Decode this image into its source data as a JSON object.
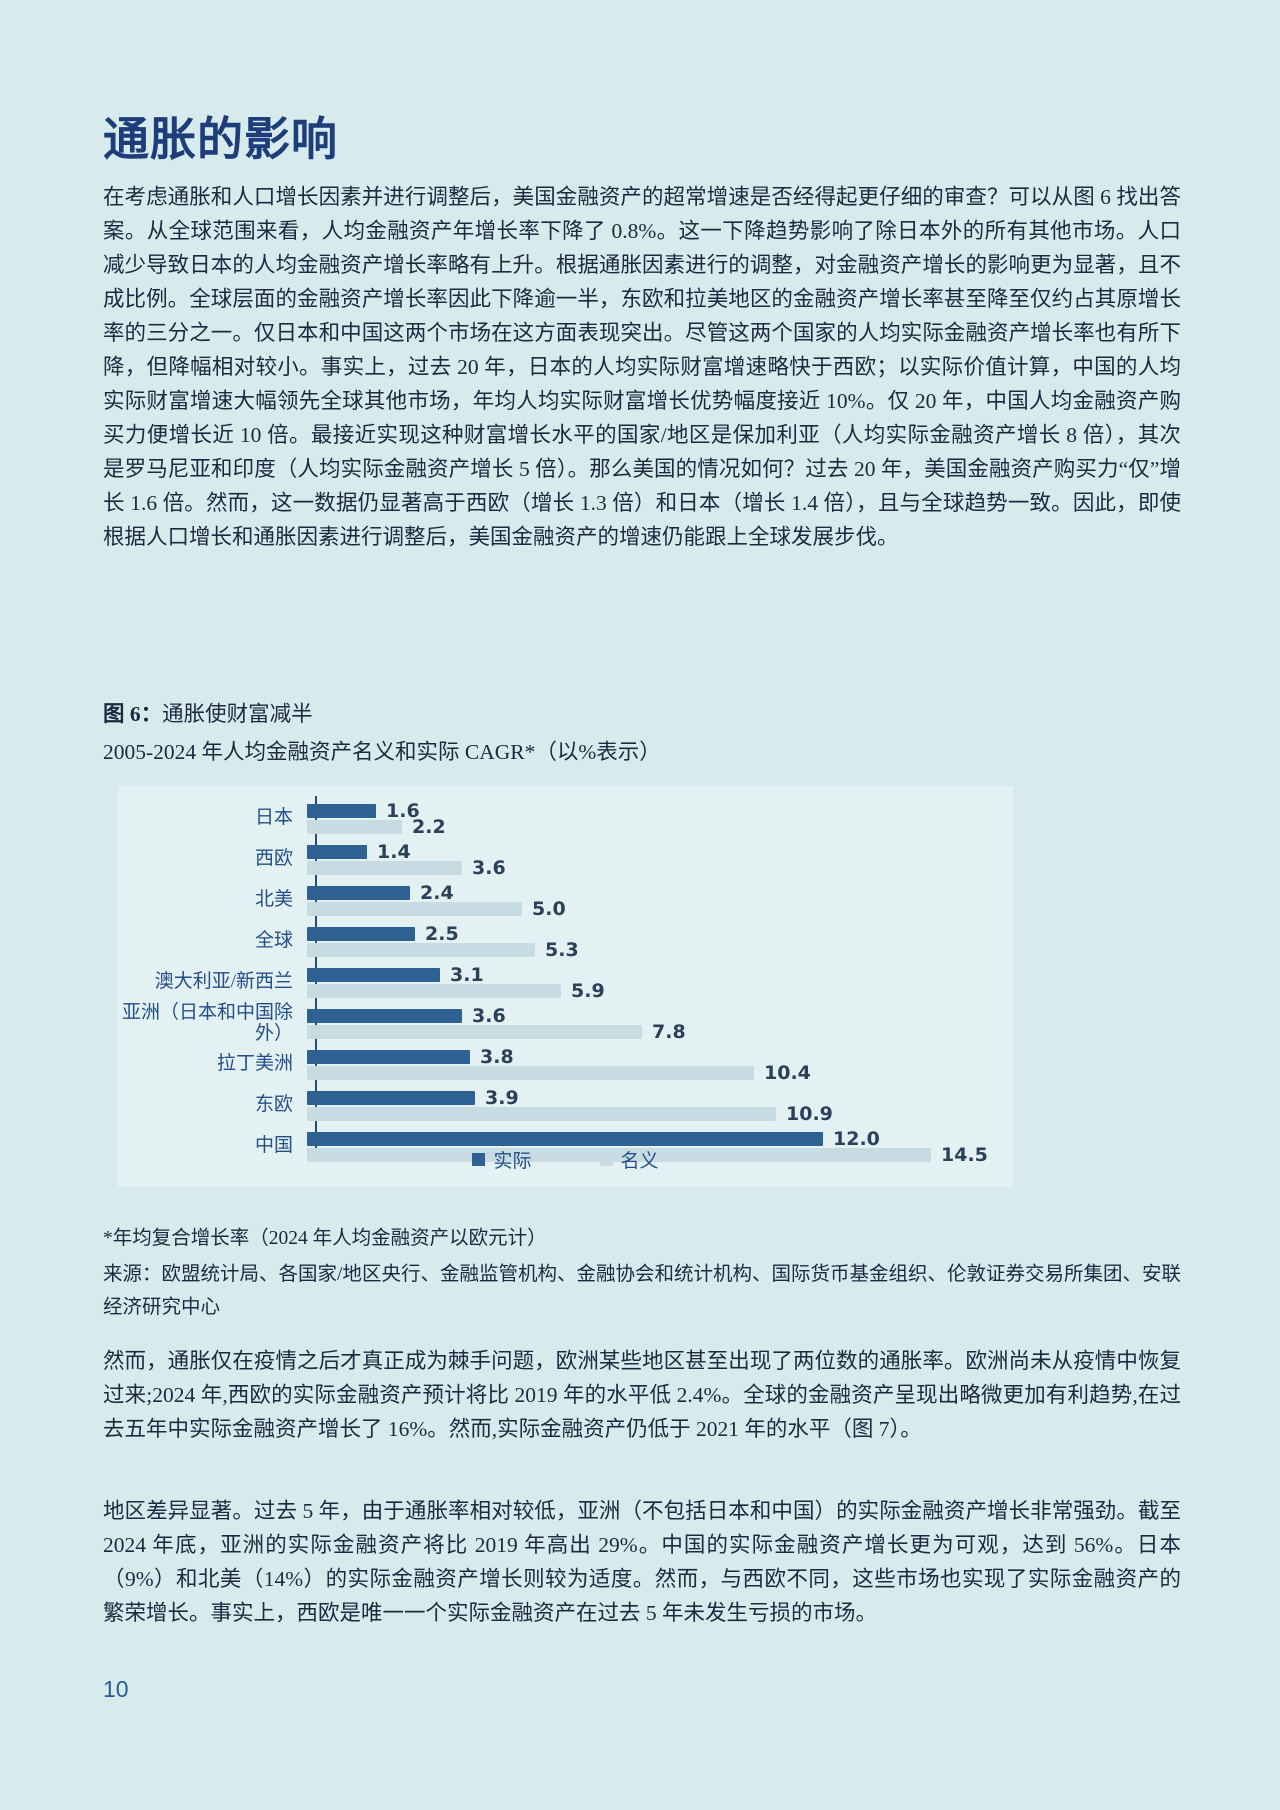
{
  "page": {
    "title": "通胀的影响",
    "page_number": "10"
  },
  "paragraphs": {
    "p1": "在考虑通胀和人口增长因素并进行调整后，美国金融资产的超常增速是否经得起更仔细的审查？可以从图 6 找出答案。从全球范围来看，人均金融资产年增长率下降了 0.8%。这一下降趋势影响了除日本外的所有其他市场。人口减少导致日本的人均金融资产增长率略有上升。根据通胀因素进行的调整，对金融资产增长的影响更为显著，且不成比例。全球层面的金融资产增长率因此下降逾一半，东欧和拉美地区的金融资产增长率甚至降至仅约占其原增长率的三分之一。仅日本和中国这两个市场在这方面表现突出。尽管这两个国家的人均实际金融资产增长率也有所下降，但降幅相对较小。事实上，过去 20 年，日本的人均实际财富增速略快于西欧；以实际价值计算，中国的人均实际财富增速大幅领先全球其他市场，年均人均实际财富增长优势幅度接近 10%。仅 20 年，中国人均金融资产购买力便增长近 10 倍。最接近实现这种财富增长水平的国家/地区是保加利亚（人均实际金融资产增长 8 倍），其次是罗马尼亚和印度（人均实际金融资产增长 5 倍）。那么美国的情况如何？过去 20 年，美国金融资产购买力“仅”增长 1.6 倍。然而，这一数据仍显著高于西欧（增长 1.3 倍）和日本（增长 1.4 倍），且与全球趋势一致。因此，即使根据人口增长和通胀因素进行调整后，美国金融资产的增速仍能跟上全球发展步伐。",
    "p2": "然而，通胀仅在疫情之后才真正成为棘手问题，欧洲某些地区甚至出现了两位数的通胀率。欧洲尚未从疫情中恢复过来;2024 年,西欧的实际金融资产预计将比 2019 年的水平低 2.4%。全球的金融资产呈现出略微更加有利趋势,在过去五年中实际金融资产增长了 16%。然而,实际金融资产仍低于 2021 年的水平（图 7）。",
    "p3": "地区差异显著。过去 5 年，由于通胀率相对较低，亚洲（不包括日本和中国）的实际金融资产增长非常强劲。截至 2024 年底，亚洲的实际金融资产将比 2019 年高出 29%。中国的实际金融资产增长更为可观，达到 56%。日本（9%）和北美（14%）的实际金融资产增长则较为适度。然而，与西欧不同，这些市场也实现了实际金融资产的繁荣增长。事实上，西欧是唯一一个实际金融资产在过去 5 年未发生亏损的市场。"
  },
  "figure": {
    "label": "图 6：",
    "caption_title": "通胀使财富减半",
    "subtitle": "2005-2024 年人均金融资产名义和实际 CAGR*（以%表示）",
    "footnote": "*年均复合增长率（2024 年人均金融资产以欧元计）",
    "source": "来源：欧盟统计局、各国家/地区央行、金融监管机构、金融协会和统计机构、国际货币基金组织、伦敦证券交易所集团、安联经济研究中心"
  },
  "chart_data": {
    "type": "bar",
    "orientation": "horizontal",
    "title": "通胀使财富减半",
    "subtitle": "2005-2024 年人均金融资产名义和实际 CAGR*（以%表示）",
    "categories": [
      "日本",
      "西欧",
      "北美",
      "全球",
      "澳大利亚/新西兰",
      "亚洲（日本和中国除外）",
      "拉丁美洲",
      "东欧",
      "中国"
    ],
    "series": [
      {
        "name": "实际",
        "color": "#2d6191",
        "values": [
          1.6,
          1.4,
          2.4,
          2.5,
          3.1,
          3.6,
          3.8,
          3.9,
          12.0
        ]
      },
      {
        "name": "名义",
        "color": "#c7dbe3",
        "values": [
          2.2,
          3.6,
          5.0,
          5.3,
          5.9,
          7.8,
          10.4,
          10.9,
          14.5
        ]
      }
    ],
    "xlim": [
      0,
      15
    ],
    "value_labels": true,
    "legend_position": "bottom",
    "grid": false
  },
  "colors": {
    "page_background": "#d7ebed",
    "chart_background": "#e4f1f3",
    "title_color": "#1e3d7b",
    "body_text": "#1c2940",
    "axis_color": "#2b4d6e",
    "value_label_color": "#2b4059",
    "category_label_color": "#234f86"
  }
}
